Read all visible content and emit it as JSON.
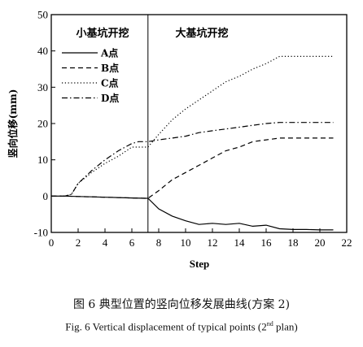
{
  "chart_data": {
    "type": "line",
    "xlabel": "Step",
    "ylabel": "竖向位移(mm)",
    "xlim": [
      0,
      22
    ],
    "ylim": [
      -10,
      50
    ],
    "xticks": [
      0,
      2,
      4,
      6,
      8,
      10,
      12,
      14,
      16,
      18,
      20,
      22
    ],
    "yticks": [
      -10,
      0,
      10,
      20,
      30,
      40,
      50
    ],
    "grid": false,
    "legend_position": "upper-left",
    "phase_divider_x": 7.2,
    "phase_labels": {
      "left": "小基坑开挖",
      "right": "大基坑开挖"
    },
    "series": [
      {
        "name": "A点",
        "style": "solid",
        "x": [
          0,
          1,
          2,
          3,
          4,
          5,
          6,
          7,
          7.2,
          8,
          9,
          10,
          11,
          12,
          13,
          14,
          15,
          16,
          17,
          18,
          19,
          20,
          21
        ],
        "y": [
          0,
          0,
          -0.1,
          -0.2,
          -0.3,
          -0.4,
          -0.5,
          -0.6,
          -0.6,
          -3.5,
          -5.5,
          -6.8,
          -7.8,
          -7.5,
          -7.8,
          -7.5,
          -8.3,
          -8.0,
          -9.0,
          -9.2,
          -9.2,
          -9.3,
          -9.3
        ]
      },
      {
        "name": "B点",
        "style": "dashed",
        "x": [
          0,
          1,
          2,
          3,
          4,
          5,
          6,
          7,
          7.2,
          8,
          9,
          10,
          11,
          12,
          13,
          14,
          15,
          16,
          17,
          18,
          19,
          20,
          21
        ],
        "y": [
          0,
          0,
          -0.1,
          -0.2,
          -0.3,
          -0.4,
          -0.5,
          -0.6,
          -0.6,
          1.5,
          4.5,
          6.5,
          8.5,
          10.5,
          12.5,
          13.5,
          15.0,
          15.5,
          16.0,
          16.0,
          16.0,
          16.0,
          16.0
        ]
      },
      {
        "name": "C点",
        "style": "dotted",
        "x": [
          0,
          1,
          1.5,
          2,
          3,
          4,
          5,
          6,
          6.5,
          7,
          7.2,
          8,
          9,
          10,
          11,
          12,
          13,
          14,
          15,
          16,
          17,
          18,
          19,
          20,
          21
        ],
        "y": [
          0,
          0,
          0.5,
          3.5,
          6.5,
          9.0,
          11.0,
          13.5,
          13.5,
          13.5,
          13.5,
          17.0,
          21.0,
          24.0,
          26.5,
          29.0,
          31.5,
          33.0,
          35.0,
          36.5,
          38.5,
          38.5,
          38.5,
          38.5,
          38.5
        ]
      },
      {
        "name": "D点",
        "style": "dashdot",
        "x": [
          0,
          1,
          1.5,
          2,
          3,
          4,
          5,
          6,
          6.5,
          7,
          7.2,
          8,
          9,
          10,
          11,
          12,
          13,
          14,
          15,
          16,
          17,
          18,
          19,
          20,
          21
        ],
        "y": [
          0,
          0,
          0.5,
          3.5,
          7.0,
          10.0,
          12.5,
          14.5,
          15.0,
          15.0,
          15.0,
          15.5,
          16.0,
          16.5,
          17.5,
          18.0,
          18.5,
          19.0,
          19.5,
          20.0,
          20.3,
          20.3,
          20.3,
          20.3,
          20.3
        ]
      }
    ]
  },
  "caption": {
    "cn": "图 6   典型位置的竖向位移发展曲线(方案 2)",
    "en_pre": "Fig. 6   Vertical displacement of typical points (2",
    "en_sup": "nd",
    "en_post": " plan)"
  }
}
